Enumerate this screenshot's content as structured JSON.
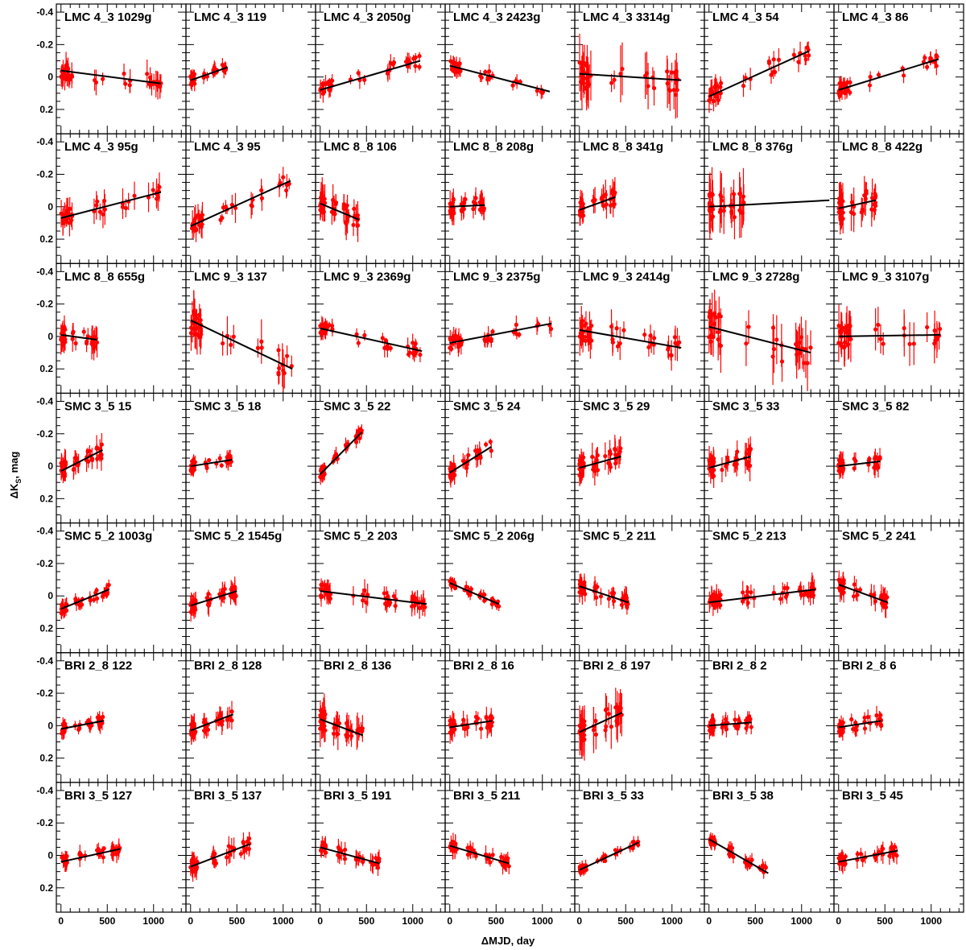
{
  "figure": {
    "xlabel": "ΔMJD, day",
    "ylabel": "ΔK",
    "ylabel_sub": "S",
    "ylabel_suffix": ", mag"
  },
  "chart_data": {
    "type": "scatter",
    "layout": {
      "rows": 7,
      "cols": 7
    },
    "xlim": [
      -50,
      1350
    ],
    "ylim": [
      0.35,
      -0.45
    ],
    "y_inverted": true,
    "x_ticks": [
      0,
      500,
      1000
    ],
    "y_ticks": [
      -0.4,
      -0.2,
      0,
      0.2
    ],
    "y_tick_labels": [
      "-0.4",
      "-0.2",
      "0",
      "0.2"
    ],
    "point_color": "#ff0000",
    "fit_color": "#000000",
    "panels": [
      {
        "title": "LMC 4_3 1029g",
        "fit": [
          [
            0,
            -0.04
          ],
          [
            1080,
            0.04
          ]
        ],
        "span": [
          0,
          1080
        ],
        "n": 40,
        "seed": 1,
        "noise": 0.05,
        "err": 0.08
      },
      {
        "title": "LMC 4_3 119",
        "fit": [
          [
            0,
            0.02
          ],
          [
            400,
            -0.06
          ]
        ],
        "span": [
          0,
          400
        ],
        "n": 40,
        "seed": 2,
        "noise": 0.03,
        "err": 0.04
      },
      {
        "title": "LMC 4_3 2050g",
        "fit": [
          [
            0,
            0.08
          ],
          [
            1080,
            -0.1
          ]
        ],
        "span": [
          0,
          1080
        ],
        "n": 40,
        "seed": 3,
        "noise": 0.04,
        "err": 0.05
      },
      {
        "title": "LMC 4_3 2423g",
        "fit": [
          [
            0,
            -0.07
          ],
          [
            1080,
            0.09
          ]
        ],
        "span": [
          0,
          1080
        ],
        "n": 40,
        "seed": 4,
        "noise": 0.03,
        "err": 0.04
      },
      {
        "title": "LMC 4_3 3314g",
        "fit": [
          [
            0,
            -0.02
          ],
          [
            1100,
            0.02
          ]
        ],
        "span": [
          0,
          1100
        ],
        "n": 40,
        "seed": 5,
        "noise": 0.1,
        "err": 0.15
      },
      {
        "title": "LMC 4_3 54",
        "fit": [
          [
            0,
            0.12
          ],
          [
            1080,
            -0.16
          ]
        ],
        "span": [
          0,
          1080
        ],
        "n": 40,
        "seed": 6,
        "noise": 0.05,
        "err": 0.07
      },
      {
        "title": "LMC 4_3 86",
        "fit": [
          [
            0,
            0.08
          ],
          [
            1080,
            -0.11
          ]
        ],
        "span": [
          0,
          1080
        ],
        "n": 40,
        "seed": 7,
        "noise": 0.04,
        "err": 0.05
      },
      {
        "title": "LMC 4_3 95g",
        "fit": [
          [
            0,
            0.07
          ],
          [
            1080,
            -0.09
          ]
        ],
        "span": [
          0,
          1080
        ],
        "n": 40,
        "seed": 8,
        "noise": 0.05,
        "err": 0.08
      },
      {
        "title": "LMC 4_3 95",
        "fit": [
          [
            0,
            0.12
          ],
          [
            1080,
            -0.16
          ]
        ],
        "span": [
          0,
          1080
        ],
        "n": 40,
        "seed": 9,
        "noise": 0.05,
        "err": 0.08
      },
      {
        "title": "LMC 8_8 106",
        "fit": [
          [
            0,
            -0.02
          ],
          [
            420,
            0.08
          ]
        ],
        "span": [
          0,
          420
        ],
        "n": 40,
        "seed": 10,
        "noise": 0.06,
        "err": 0.1
      },
      {
        "title": "LMC 8_8 208g",
        "fit": [
          [
            0,
            0.0
          ],
          [
            380,
            -0.01
          ]
        ],
        "span": [
          0,
          380
        ],
        "n": 40,
        "seed": 11,
        "noise": 0.05,
        "err": 0.07
      },
      {
        "title": "LMC 8_8 341g",
        "fit": [
          [
            0,
            0.02
          ],
          [
            390,
            -0.06
          ]
        ],
        "span": [
          0,
          390
        ],
        "n": 40,
        "seed": 12,
        "noise": 0.05,
        "err": 0.08
      },
      {
        "title": "LMC 8_8 376g",
        "fit": [
          [
            0,
            0.0
          ],
          [
            1300,
            -0.04
          ]
        ],
        "span": [
          0,
          380
        ],
        "n": 40,
        "seed": 13,
        "noise": 0.08,
        "err": 0.15
      },
      {
        "title": "LMC 8_8 422g",
        "fit": [
          [
            0,
            0.01
          ],
          [
            400,
            -0.04
          ]
        ],
        "span": [
          0,
          400
        ],
        "n": 40,
        "seed": 14,
        "noise": 0.07,
        "err": 0.12
      },
      {
        "title": "LMC 8_8 655g",
        "fit": [
          [
            0,
            -0.01
          ],
          [
            390,
            0.02
          ]
        ],
        "span": [
          0,
          390
        ],
        "n": 40,
        "seed": 15,
        "noise": 0.05,
        "err": 0.08
      },
      {
        "title": "LMC 9_3 137",
        "fit": [
          [
            0,
            -0.1
          ],
          [
            1100,
            0.2
          ]
        ],
        "span": [
          0,
          1100
        ],
        "n": 40,
        "seed": 16,
        "noise": 0.08,
        "err": 0.12
      },
      {
        "title": "LMC 9_3 2369g",
        "fit": [
          [
            0,
            -0.05
          ],
          [
            1100,
            0.09
          ]
        ],
        "span": [
          0,
          1100
        ],
        "n": 40,
        "seed": 17,
        "noise": 0.04,
        "err": 0.05
      },
      {
        "title": "LMC 9_3 2375g",
        "fit": [
          [
            0,
            0.04
          ],
          [
            1100,
            -0.08
          ]
        ],
        "span": [
          0,
          1100
        ],
        "n": 40,
        "seed": 18,
        "noise": 0.04,
        "err": 0.05
      },
      {
        "title": "LMC 9_3 2414g",
        "fit": [
          [
            0,
            -0.04
          ],
          [
            1100,
            0.07
          ]
        ],
        "span": [
          0,
          1100
        ],
        "n": 40,
        "seed": 19,
        "noise": 0.06,
        "err": 0.1
      },
      {
        "title": "LMC 9_3 2728g",
        "fit": [
          [
            0,
            -0.06
          ],
          [
            1100,
            0.1
          ]
        ],
        "span": [
          0,
          1100
        ],
        "n": 40,
        "seed": 20,
        "noise": 0.1,
        "err": 0.15
      },
      {
        "title": "LMC 9_3 3107g",
        "fit": [
          [
            0,
            0.0
          ],
          [
            1100,
            -0.01
          ]
        ],
        "span": [
          0,
          1100
        ],
        "n": 40,
        "seed": 21,
        "noise": 0.07,
        "err": 0.12
      },
      {
        "title": "SMC 3_5 15",
        "fit": [
          [
            0,
            0.03
          ],
          [
            450,
            -0.1
          ]
        ],
        "span": [
          0,
          450
        ],
        "n": 45,
        "seed": 22,
        "noise": 0.05,
        "err": 0.07
      },
      {
        "title": "SMC 3_5 18",
        "fit": [
          [
            0,
            0.0
          ],
          [
            450,
            -0.04
          ]
        ],
        "span": [
          0,
          450
        ],
        "n": 45,
        "seed": 23,
        "noise": 0.03,
        "err": 0.04
      },
      {
        "title": "SMC 3_5 22",
        "fit": [
          [
            0,
            0.05
          ],
          [
            450,
            -0.21
          ]
        ],
        "span": [
          0,
          450
        ],
        "n": 45,
        "seed": 24,
        "noise": 0.03,
        "err": 0.04
      },
      {
        "title": "SMC 3_5 24",
        "fit": [
          [
            0,
            0.04
          ],
          [
            450,
            -0.12
          ]
        ],
        "span": [
          0,
          450
        ],
        "n": 45,
        "seed": 25,
        "noise": 0.04,
        "err": 0.05
      },
      {
        "title": "SMC 3_5 29",
        "fit": [
          [
            0,
            0.01
          ],
          [
            450,
            -0.06
          ]
        ],
        "span": [
          0,
          450
        ],
        "n": 45,
        "seed": 26,
        "noise": 0.06,
        "err": 0.08
      },
      {
        "title": "SMC 3_5 33",
        "fit": [
          [
            0,
            0.01
          ],
          [
            450,
            -0.06
          ]
        ],
        "span": [
          0,
          450
        ],
        "n": 45,
        "seed": 27,
        "noise": 0.06,
        "err": 0.08
      },
      {
        "title": "SMC 3_5 82",
        "fit": [
          [
            0,
            0.0
          ],
          [
            450,
            -0.03
          ]
        ],
        "span": [
          0,
          450
        ],
        "n": 45,
        "seed": 28,
        "noise": 0.04,
        "err": 0.06
      },
      {
        "title": "SMC 5_2 1003g",
        "fit": [
          [
            0,
            0.08
          ],
          [
            520,
            -0.04
          ]
        ],
        "span": [
          0,
          520
        ],
        "n": 50,
        "seed": 29,
        "noise": 0.03,
        "err": 0.04
      },
      {
        "title": "SMC 5_2 1545g",
        "fit": [
          [
            0,
            0.06
          ],
          [
            500,
            -0.03
          ]
        ],
        "span": [
          0,
          500
        ],
        "n": 50,
        "seed": 30,
        "noise": 0.04,
        "err": 0.06
      },
      {
        "title": "SMC 5_2 203",
        "fit": [
          [
            0,
            -0.03
          ],
          [
            1150,
            0.05
          ]
        ],
        "span": [
          0,
          1150
        ],
        "n": 60,
        "seed": 31,
        "noise": 0.04,
        "err": 0.06
      },
      {
        "title": "SMC 5_2 206g",
        "fit": [
          [
            0,
            -0.08
          ],
          [
            530,
            0.05
          ]
        ],
        "span": [
          0,
          530
        ],
        "n": 50,
        "seed": 32,
        "noise": 0.02,
        "err": 0.03
      },
      {
        "title": "SMC 5_2 211",
        "fit": [
          [
            0,
            -0.06
          ],
          [
            530,
            0.04
          ]
        ],
        "span": [
          0,
          530
        ],
        "n": 50,
        "seed": 33,
        "noise": 0.04,
        "err": 0.06
      },
      {
        "title": "SMC 5_2 213",
        "fit": [
          [
            0,
            0.04
          ],
          [
            1150,
            -0.04
          ]
        ],
        "span": [
          0,
          1150
        ],
        "n": 60,
        "seed": 34,
        "noise": 0.04,
        "err": 0.06
      },
      {
        "title": "SMC 5_2 241",
        "fit": [
          [
            0,
            -0.07
          ],
          [
            530,
            0.04
          ]
        ],
        "span": [
          0,
          530
        ],
        "n": 50,
        "seed": 35,
        "noise": 0.04,
        "err": 0.06
      },
      {
        "title": "BRI 2_8 122",
        "fit": [
          [
            0,
            0.02
          ],
          [
            460,
            -0.03
          ]
        ],
        "span": [
          0,
          460
        ],
        "n": 45,
        "seed": 36,
        "noise": 0.03,
        "err": 0.04
      },
      {
        "title": "BRI 2_8 128",
        "fit": [
          [
            0,
            0.03
          ],
          [
            460,
            -0.07
          ]
        ],
        "span": [
          0,
          460
        ],
        "n": 45,
        "seed": 37,
        "noise": 0.04,
        "err": 0.06
      },
      {
        "title": "BRI 2_8 136",
        "fit": [
          [
            0,
            -0.04
          ],
          [
            460,
            0.06
          ]
        ],
        "span": [
          0,
          460
        ],
        "n": 45,
        "seed": 38,
        "noise": 0.06,
        "err": 0.1
      },
      {
        "title": "BRI 2_8 16",
        "fit": [
          [
            0,
            0.01
          ],
          [
            460,
            -0.03
          ]
        ],
        "span": [
          0,
          460
        ],
        "n": 45,
        "seed": 39,
        "noise": 0.04,
        "err": 0.06
      },
      {
        "title": "BRI 2_8 197",
        "fit": [
          [
            0,
            0.04
          ],
          [
            460,
            -0.08
          ]
        ],
        "span": [
          0,
          460
        ],
        "n": 45,
        "seed": 40,
        "noise": 0.07,
        "err": 0.12
      },
      {
        "title": "BRI 2_8 2",
        "fit": [
          [
            0,
            0.0
          ],
          [
            460,
            -0.02
          ]
        ],
        "span": [
          0,
          460
        ],
        "n": 45,
        "seed": 41,
        "noise": 0.04,
        "err": 0.05
      },
      {
        "title": "BRI 2_8 6",
        "fit": [
          [
            0,
            0.01
          ],
          [
            460,
            -0.03
          ]
        ],
        "span": [
          0,
          460
        ],
        "n": 45,
        "seed": 42,
        "noise": 0.04,
        "err": 0.05
      },
      {
        "title": "BRI 3_5 127",
        "fit": [
          [
            0,
            0.04
          ],
          [
            640,
            -0.04
          ]
        ],
        "span": [
          0,
          640
        ],
        "n": 45,
        "seed": 43,
        "noise": 0.03,
        "err": 0.05
      },
      {
        "title": "BRI 3_5 137",
        "fit": [
          [
            0,
            0.07
          ],
          [
            640,
            -0.07
          ]
        ],
        "span": [
          0,
          640
        ],
        "n": 45,
        "seed": 44,
        "noise": 0.04,
        "err": 0.06
      },
      {
        "title": "BRI 3_5 191",
        "fit": [
          [
            0,
            -0.05
          ],
          [
            640,
            0.05
          ]
        ],
        "span": [
          0,
          640
        ],
        "n": 45,
        "seed": 45,
        "noise": 0.03,
        "err": 0.05
      },
      {
        "title": "BRI 3_5 211",
        "fit": [
          [
            0,
            -0.06
          ],
          [
            640,
            0.05
          ]
        ],
        "span": [
          0,
          640
        ],
        "n": 45,
        "seed": 46,
        "noise": 0.03,
        "err": 0.05
      },
      {
        "title": "BRI 3_5 33",
        "fit": [
          [
            0,
            0.09
          ],
          [
            640,
            -0.08
          ]
        ],
        "span": [
          0,
          640
        ],
        "n": 45,
        "seed": 47,
        "noise": 0.02,
        "err": 0.03
      },
      {
        "title": "BRI 3_5 38",
        "fit": [
          [
            0,
            -0.1
          ],
          [
            640,
            0.11
          ]
        ],
        "span": [
          0,
          640
        ],
        "n": 45,
        "seed": 48,
        "noise": 0.03,
        "err": 0.04
      },
      {
        "title": "BRI 3_5 45",
        "fit": [
          [
            0,
            0.04
          ],
          [
            640,
            -0.03
          ]
        ],
        "span": [
          0,
          640
        ],
        "n": 45,
        "seed": 49,
        "noise": 0.03,
        "err": 0.05
      }
    ]
  }
}
